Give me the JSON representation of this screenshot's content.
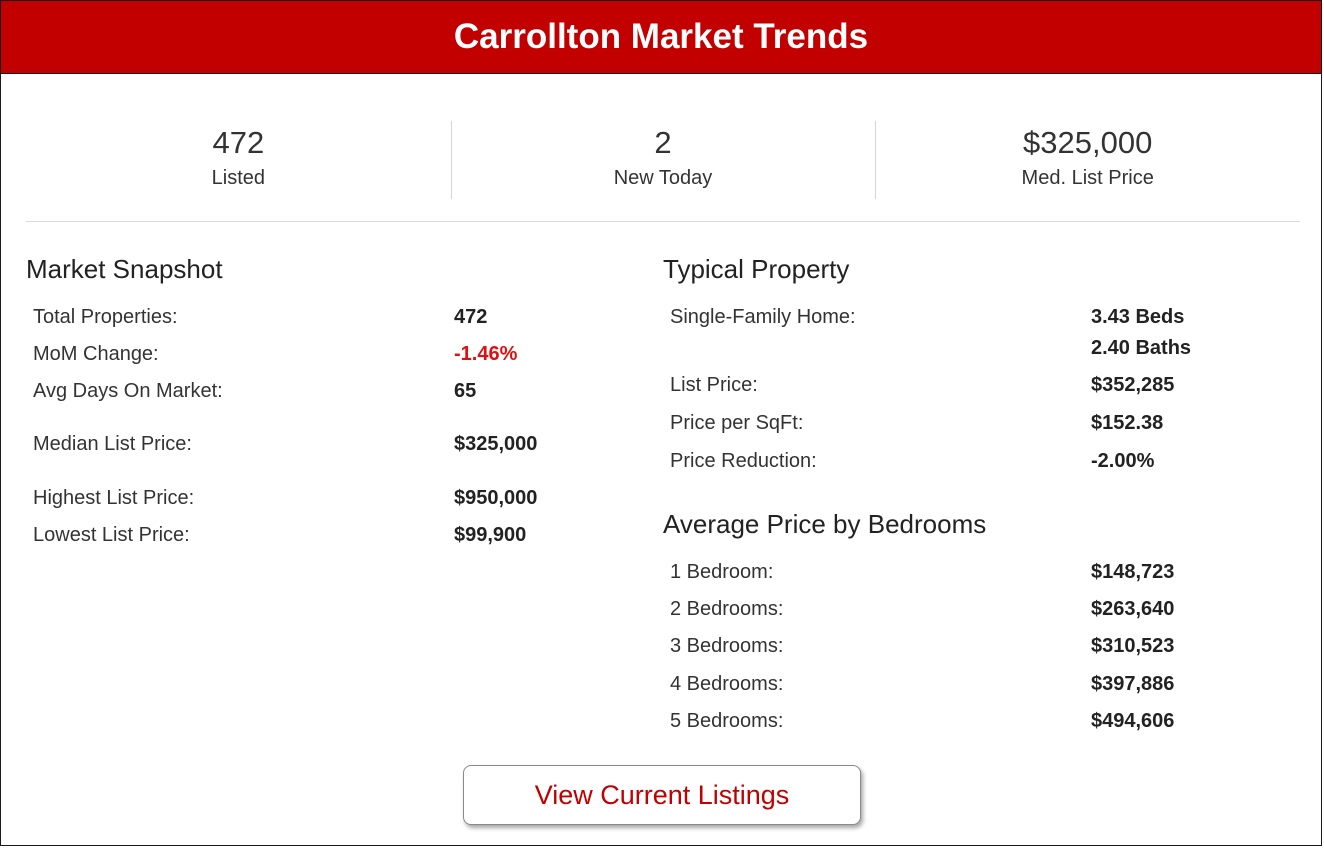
{
  "header": {
    "title": "Carrollton Market Trends"
  },
  "stats": [
    {
      "value": "472",
      "label": "Listed"
    },
    {
      "value": "2",
      "label": "New Today"
    },
    {
      "value": "$325,000",
      "label": "Med. List Price"
    }
  ],
  "snapshot": {
    "title": "Market Snapshot",
    "rows": [
      {
        "label": "Total Properties:",
        "value": "472"
      },
      {
        "label": "MoM Change:",
        "value": "-1.46%"
      },
      {
        "label": "Avg Days On Market:",
        "value": "65"
      },
      {
        "label": "Median List Price:",
        "value": "$325,000"
      },
      {
        "label": "Highest List Price:",
        "value": "$950,000"
      },
      {
        "label": "Lowest List Price:",
        "value": "$99,900"
      }
    ]
  },
  "typical": {
    "title": "Typical Property",
    "home_label": "Single-Family Home:",
    "beds": "3.43 Beds",
    "baths": "2.40 Baths",
    "rows": [
      {
        "label": "List Price:",
        "value": "$352,285"
      },
      {
        "label": "Price per SqFt:",
        "value": "$152.38"
      },
      {
        "label": "Price Reduction:",
        "value": "-2.00%"
      }
    ]
  },
  "bedrooms": {
    "title": "Average Price by Bedrooms",
    "rows": [
      {
        "label": "1 Bedroom:",
        "value": "$148,723"
      },
      {
        "label": "2 Bedrooms:",
        "value": "$263,640"
      },
      {
        "label": "3 Bedrooms:",
        "value": "$310,523"
      },
      {
        "label": "4 Bedrooms:",
        "value": "$397,886"
      },
      {
        "label": "5 Bedrooms:",
        "value": "$494,606"
      }
    ]
  },
  "cta": {
    "label": "View Current Listings"
  },
  "colors": {
    "brand_red": "#c20000",
    "negative_red": "#e01010"
  }
}
